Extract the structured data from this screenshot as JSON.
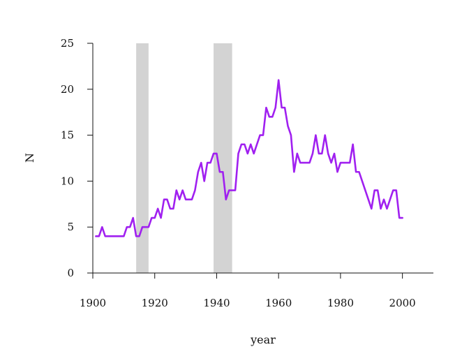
{
  "chart_data": {
    "type": "line",
    "xlabel": "year",
    "ylabel": "N",
    "xlim": [
      1900,
      2010
    ],
    "ylim": [
      0,
      25
    ],
    "x_ticks": [
      1900,
      1920,
      1940,
      1960,
      1980,
      2000
    ],
    "y_ticks": [
      0,
      5,
      10,
      15,
      20,
      25
    ],
    "grid": false,
    "line_color": "#a020f0",
    "band_color": "#d3d3d3",
    "shaded_periods": [
      {
        "start": 1914,
        "end": 1918
      },
      {
        "start": 1939,
        "end": 1945
      }
    ],
    "series": [
      {
        "x": [
          1901,
          1902,
          1903,
          1904,
          1905,
          1906,
          1907,
          1908,
          1909,
          1910,
          1911,
          1912,
          1913,
          1914,
          1915,
          1916,
          1917,
          1918,
          1919,
          1920,
          1921,
          1922,
          1923,
          1924,
          1925,
          1926,
          1927,
          1928,
          1929,
          1930,
          1931,
          1932,
          1933,
          1934,
          1935,
          1936,
          1937,
          1938,
          1939,
          1940,
          1941,
          1942,
          1943,
          1944,
          1945,
          1946,
          1947,
          1948,
          1949,
          1950,
          1951,
          1952,
          1953,
          1954,
          1955,
          1956,
          1957,
          1958,
          1959,
          1960,
          1961,
          1962,
          1963,
          1964,
          1965,
          1966,
          1967,
          1968,
          1969,
          1970,
          1971,
          1972,
          1973,
          1974,
          1975,
          1976,
          1977,
          1978,
          1979,
          1980,
          1981,
          1982,
          1983,
          1984,
          1985,
          1986,
          1987,
          1988,
          1989,
          1990,
          1991,
          1992,
          1993,
          1994,
          1995,
          1996,
          1997,
          1998,
          1999,
          2000
        ],
        "values": [
          4,
          4,
          5,
          4,
          4,
          4,
          4,
          4,
          4,
          4,
          5,
          5,
          6,
          4,
          4,
          5,
          5,
          5,
          6,
          6,
          7,
          6,
          8,
          8,
          7,
          7,
          9,
          8,
          9,
          8,
          8,
          8,
          9,
          11,
          12,
          10,
          12,
          12,
          13,
          13,
          11,
          11,
          8,
          9,
          9,
          9,
          13,
          14,
          14,
          13,
          14,
          13,
          14,
          15,
          15,
          18,
          17,
          17,
          18,
          21,
          18,
          18,
          16,
          15,
          11,
          13,
          12,
          12,
          12,
          12,
          13,
          15,
          13,
          13,
          15,
          13,
          12,
          13,
          11,
          12,
          12,
          12,
          12,
          14,
          11,
          11,
          10,
          9,
          8,
          7,
          9,
          9,
          7,
          8,
          7,
          8,
          9,
          9,
          6,
          6
        ]
      }
    ]
  }
}
